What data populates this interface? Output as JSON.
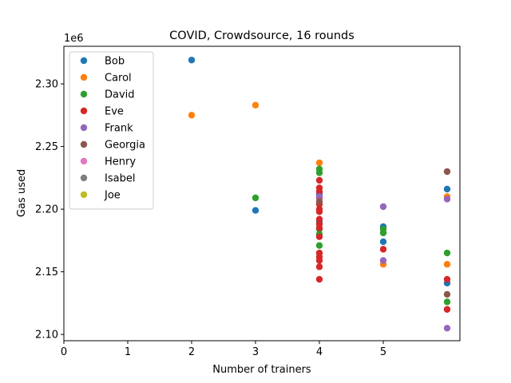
{
  "chart_data": {
    "type": "scatter",
    "title": "COVID, Crowdsource, 16 rounds",
    "xlabel": "Number of trainers",
    "ylabel": "Gas used",
    "y_offset_label": "1e6",
    "xlim": [
      0,
      6.2
    ],
    "ylim": [
      2095000,
      2330000
    ],
    "x_ticks": [
      0,
      1,
      2,
      3,
      4,
      5
    ],
    "y_ticks": [
      2100000,
      2150000,
      2200000,
      2250000,
      2300000
    ],
    "y_tick_labels": [
      "2.10",
      "2.15",
      "2.20",
      "2.25",
      "2.30"
    ],
    "grid": false,
    "legend_position": "upper-left",
    "series": [
      {
        "name": "Bob",
        "color": "#1f77b4",
        "points": [
          [
            2,
            2319000
          ],
          [
            3,
            2199000
          ],
          [
            4,
            2190000
          ],
          [
            4,
            2212000
          ],
          [
            5,
            2174000
          ],
          [
            5,
            2186000
          ],
          [
            6,
            2216000
          ],
          [
            6,
            2141000
          ]
        ]
      },
      {
        "name": "Carol",
        "color": "#ff7f0e",
        "points": [
          [
            2,
            2275000
          ],
          [
            3,
            2283000
          ],
          [
            4,
            2237000
          ],
          [
            5,
            2156000
          ],
          [
            6,
            2210000
          ],
          [
            6,
            2156000
          ]
        ]
      },
      {
        "name": "David",
        "color": "#2ca02c",
        "points": [
          [
            3,
            2209000
          ],
          [
            4,
            2232000
          ],
          [
            4,
            2229000
          ],
          [
            4,
            2184000
          ],
          [
            4,
            2180000
          ],
          [
            4,
            2171000
          ],
          [
            5,
            2184000
          ],
          [
            5,
            2181000
          ],
          [
            6,
            2165000
          ],
          [
            6,
            2126000
          ]
        ]
      },
      {
        "name": "Eve",
        "color": "#d62728",
        "points": [
          [
            4,
            2223000
          ],
          [
            4,
            2217000
          ],
          [
            4,
            2214000
          ],
          [
            4,
            2209000
          ],
          [
            4,
            2204000
          ],
          [
            4,
            2200000
          ],
          [
            4,
            2198000
          ],
          [
            4,
            2192000
          ],
          [
            4,
            2188000
          ],
          [
            4,
            2185000
          ],
          [
            4,
            2178000
          ],
          [
            4,
            2165000
          ],
          [
            4,
            2162000
          ],
          [
            4,
            2159000
          ],
          [
            4,
            2154000
          ],
          [
            4,
            2144000
          ],
          [
            5,
            2168000
          ],
          [
            6,
            2144000
          ],
          [
            6,
            2120000
          ]
        ]
      },
      {
        "name": "Frank",
        "color": "#9467bd",
        "points": [
          [
            4,
            2210000
          ],
          [
            5,
            2202000
          ],
          [
            5,
            2159000
          ],
          [
            6,
            2208000
          ],
          [
            6,
            2105000
          ]
        ]
      },
      {
        "name": "Georgia",
        "color": "#8c564b",
        "points": [
          [
            4,
            2206000
          ],
          [
            6,
            2230000
          ],
          [
            6,
            2132000
          ]
        ]
      },
      {
        "name": "Henry",
        "color": "#e377c2",
        "points": []
      },
      {
        "name": "Isabel",
        "color": "#7f7f7f",
        "points": []
      },
      {
        "name": "Joe",
        "color": "#bcbd22",
        "points": []
      }
    ]
  }
}
